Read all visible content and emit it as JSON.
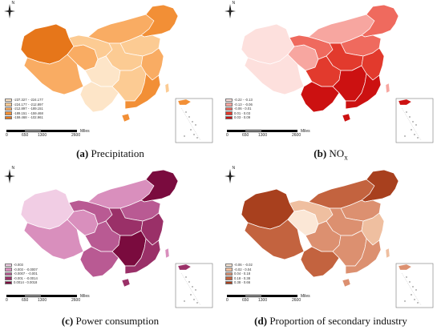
{
  "compass": {
    "north_label": "N"
  },
  "scale": {
    "ticks": [
      "0",
      "650",
      "1300",
      "2600"
    ],
    "unit": "Miles"
  },
  "panels": [
    {
      "letter": "(a)",
      "title": "Precipitation",
      "sub": "",
      "legend": [
        "-237.327 - -224.177",
        "-224.177 - -212.897",
        "-212.897 - -189.151",
        "-189.151 - -159.468",
        "-159.468 - -102.961"
      ],
      "colors": [
        "#fde5c8",
        "#fccb93",
        "#f9ac63",
        "#f28f36",
        "#e6761a"
      ],
      "regions": {
        "northeast": 3,
        "north_coast": 1,
        "inner_mongolia": 2,
        "xinjiang": 4,
        "tibet": 2,
        "qinghai": 2,
        "gansu_ningxia": 1,
        "central_north": 1,
        "sichuan_chongqing": 0,
        "yunnan_guizhou": 0,
        "central_south": 1,
        "east_coast": 2,
        "southeast": 3
      }
    },
    {
      "letter": "(b)",
      "title": "NO",
      "sub": "x",
      "legend": [
        "-0.22 - -0.13",
        "-0.13 - -0.06",
        "-0.06 - 0.01",
        "0.01 - 0.03",
        "0.03 - 0.09"
      ],
      "colors": [
        "#fde0dd",
        "#f7a6a0",
        "#ef6a5e",
        "#e23a2d",
        "#cc1111"
      ],
      "regions": {
        "northeast": 2,
        "north_coast": 2,
        "inner_mongolia": 1,
        "xinjiang": 0,
        "tibet": 0,
        "qinghai": 1,
        "gansu_ningxia": 2,
        "central_north": 3,
        "sichuan_chongqing": 3,
        "yunnan_guizhou": 4,
        "central_south": 4,
        "east_coast": 3,
        "southeast": 4
      }
    },
    {
      "letter": "(c)",
      "title": "Power consumption",
      "sub": "",
      "legend": [
        "-0.003",
        "-0.003 - -0.0007",
        "-0.0007 - -0.001",
        "-0.001 - -0.0014",
        "0.0014 - 0.0018"
      ],
      "colors": [
        "#f1cde4",
        "#d98fbd",
        "#b95a93",
        "#9a3068",
        "#7a0b3e"
      ],
      "regions": {
        "northeast": 4,
        "north_coast": 2,
        "inner_mongolia": 1,
        "xinjiang": 0,
        "tibet": 1,
        "qinghai": 1,
        "gansu_ningxia": 2,
        "central_north": 3,
        "sichuan_chongqing": 2,
        "yunnan_guizhou": 2,
        "central_south": 4,
        "east_coast": 3,
        "southeast": 3
      }
    },
    {
      "letter": "(d)",
      "title": "Proportion of secondary industry",
      "sub": "",
      "legend": [
        "-0.06 - -0.02",
        "-0.02 - 0.04",
        "0.04 - 0.18",
        "0.18 - 0.38",
        "0.38 - 0.66"
      ],
      "colors": [
        "#fbe7d6",
        "#efbfa0",
        "#dc9070",
        "#c3633f",
        "#a8401e"
      ],
      "regions": {
        "northeast": 4,
        "north_coast": 2,
        "inner_mongolia": 3,
        "xinjiang": 4,
        "tibet": 3,
        "qinghai": 0,
        "gansu_ningxia": 1,
        "central_north": 2,
        "sichuan_chongqing": 2,
        "yunnan_guizhou": 3,
        "central_south": 2,
        "east_coast": 1,
        "southeast": 2
      }
    }
  ]
}
